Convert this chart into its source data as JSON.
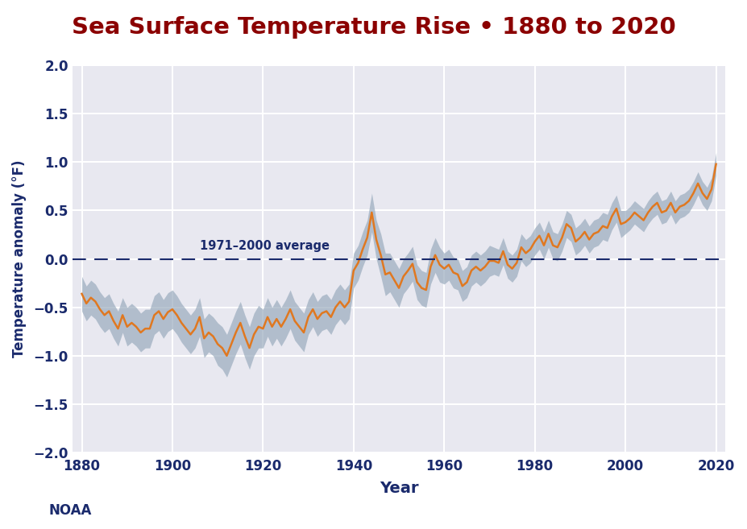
{
  "title": "Sea Surface Temperature Rise • 1880 to 2020",
  "title_color": "#8B0000",
  "xlabel": "Year",
  "ylabel": "Temperature anomaly (°F)",
  "xlabel_color": "#1a2a6c",
  "ylabel_color": "#1a2a6c",
  "xtick_color": "#1a2a6c",
  "ytick_color": "#1a2a6c",
  "noaa_label": "NOAA",
  "reference_label": "1971–2000 average",
  "fig_bg_color": "#ffffff",
  "plot_bg_color": "#e8e8f0",
  "line_color": "#e07820",
  "band_color": "#9aacbe",
  "ref_line_color": "#1a2a6c",
  "grid_color": "#ffffff",
  "ylim": [
    -2.0,
    2.0
  ],
  "xlim": [
    1878,
    2022
  ],
  "yticks": [
    -2.0,
    -1.5,
    -1.0,
    -0.5,
    0.0,
    0.5,
    1.0,
    1.5,
    2.0
  ],
  "xticks": [
    1880,
    1900,
    1920,
    1940,
    1960,
    1980,
    2000,
    2020
  ],
  "years": [
    1880,
    1881,
    1882,
    1883,
    1884,
    1885,
    1886,
    1887,
    1888,
    1889,
    1890,
    1891,
    1892,
    1893,
    1894,
    1895,
    1896,
    1897,
    1898,
    1899,
    1900,
    1901,
    1902,
    1903,
    1904,
    1905,
    1906,
    1907,
    1908,
    1909,
    1910,
    1911,
    1912,
    1913,
    1914,
    1915,
    1916,
    1917,
    1918,
    1919,
    1920,
    1921,
    1922,
    1923,
    1924,
    1925,
    1926,
    1927,
    1928,
    1929,
    1930,
    1931,
    1932,
    1933,
    1934,
    1935,
    1936,
    1937,
    1938,
    1939,
    1940,
    1941,
    1942,
    1943,
    1944,
    1945,
    1946,
    1947,
    1948,
    1949,
    1950,
    1951,
    1952,
    1953,
    1954,
    1955,
    1956,
    1957,
    1958,
    1959,
    1960,
    1961,
    1962,
    1963,
    1964,
    1965,
    1966,
    1967,
    1968,
    1969,
    1970,
    1971,
    1972,
    1973,
    1974,
    1975,
    1976,
    1977,
    1978,
    1979,
    1980,
    1981,
    1982,
    1983,
    1984,
    1985,
    1986,
    1987,
    1988,
    1989,
    1990,
    1991,
    1992,
    1993,
    1994,
    1995,
    1996,
    1997,
    1998,
    1999,
    2000,
    2001,
    2002,
    2003,
    2004,
    2005,
    2006,
    2007,
    2008,
    2009,
    2010,
    2011,
    2012,
    2013,
    2014,
    2015,
    2016,
    2017,
    2018,
    2019,
    2020
  ],
  "anomaly": [
    -0.36,
    -0.46,
    -0.4,
    -0.44,
    -0.52,
    -0.58,
    -0.54,
    -0.64,
    -0.72,
    -0.58,
    -0.7,
    -0.66,
    -0.7,
    -0.76,
    -0.72,
    -0.72,
    -0.58,
    -0.54,
    -0.62,
    -0.55,
    -0.52,
    -0.58,
    -0.66,
    -0.72,
    -0.78,
    -0.72,
    -0.6,
    -0.82,
    -0.76,
    -0.8,
    -0.88,
    -0.92,
    -1.0,
    -0.88,
    -0.76,
    -0.66,
    -0.8,
    -0.92,
    -0.78,
    -0.7,
    -0.72,
    -0.6,
    -0.7,
    -0.62,
    -0.7,
    -0.62,
    -0.52,
    -0.64,
    -0.7,
    -0.76,
    -0.6,
    -0.52,
    -0.62,
    -0.56,
    -0.54,
    -0.6,
    -0.5,
    -0.44,
    -0.5,
    -0.44,
    -0.12,
    -0.04,
    0.1,
    0.22,
    0.48,
    0.2,
    0.04,
    -0.16,
    -0.14,
    -0.22,
    -0.3,
    -0.18,
    -0.12,
    -0.05,
    -0.24,
    -0.3,
    -0.32,
    -0.08,
    0.04,
    -0.06,
    -0.1,
    -0.06,
    -0.14,
    -0.16,
    -0.28,
    -0.24,
    -0.12,
    -0.08,
    -0.12,
    -0.08,
    -0.02,
    -0.02,
    -0.04,
    0.08,
    -0.06,
    -0.1,
    -0.04,
    0.12,
    0.06,
    0.1,
    0.18,
    0.24,
    0.14,
    0.26,
    0.14,
    0.12,
    0.22,
    0.36,
    0.32,
    0.18,
    0.22,
    0.28,
    0.2,
    0.26,
    0.28,
    0.34,
    0.32,
    0.44,
    0.52,
    0.36,
    0.38,
    0.42,
    0.48,
    0.44,
    0.4,
    0.48,
    0.54,
    0.58,
    0.48,
    0.5,
    0.58,
    0.48,
    0.54,
    0.56,
    0.6,
    0.68,
    0.78,
    0.68,
    0.62,
    0.72,
    0.98
  ],
  "band_half_width": [
    0.18,
    0.18,
    0.18,
    0.18,
    0.18,
    0.18,
    0.18,
    0.18,
    0.18,
    0.18,
    0.2,
    0.2,
    0.2,
    0.2,
    0.2,
    0.2,
    0.2,
    0.2,
    0.2,
    0.2,
    0.2,
    0.2,
    0.2,
    0.2,
    0.2,
    0.2,
    0.2,
    0.2,
    0.2,
    0.2,
    0.22,
    0.22,
    0.22,
    0.22,
    0.22,
    0.22,
    0.22,
    0.22,
    0.22,
    0.22,
    0.2,
    0.2,
    0.2,
    0.2,
    0.2,
    0.2,
    0.2,
    0.2,
    0.2,
    0.2,
    0.18,
    0.18,
    0.18,
    0.18,
    0.18,
    0.18,
    0.18,
    0.18,
    0.18,
    0.18,
    0.18,
    0.18,
    0.18,
    0.18,
    0.2,
    0.2,
    0.22,
    0.22,
    0.2,
    0.2,
    0.2,
    0.18,
    0.18,
    0.18,
    0.18,
    0.18,
    0.18,
    0.18,
    0.18,
    0.18,
    0.16,
    0.16,
    0.16,
    0.16,
    0.16,
    0.16,
    0.16,
    0.16,
    0.16,
    0.16,
    0.16,
    0.14,
    0.14,
    0.14,
    0.14,
    0.14,
    0.14,
    0.14,
    0.14,
    0.14,
    0.14,
    0.14,
    0.14,
    0.14,
    0.14,
    0.14,
    0.14,
    0.14,
    0.14,
    0.14,
    0.14,
    0.14,
    0.14,
    0.14,
    0.14,
    0.14,
    0.14,
    0.14,
    0.14,
    0.14,
    0.12,
    0.12,
    0.12,
    0.12,
    0.12,
    0.12,
    0.12,
    0.12,
    0.12,
    0.12,
    0.12,
    0.12,
    0.12,
    0.12,
    0.12,
    0.12,
    0.12,
    0.12,
    0.12,
    0.12,
    0.12
  ]
}
